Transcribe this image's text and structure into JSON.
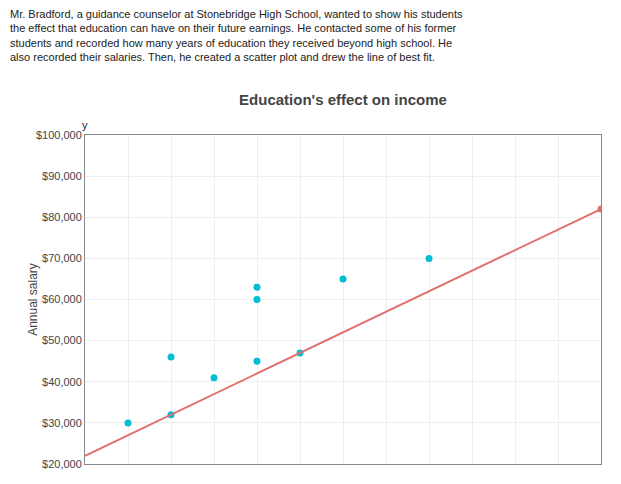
{
  "chart_data": {
    "type": "scatter",
    "title": "Education's effect on income",
    "subtitle": "Mr. Bradford, a guidance counselor at Stonebridge High School, wanted to show his students\nthe effect that education can have on their future earnings. He contacted some of his former\nstudents and recorded how many years of education they received beyond high school. He\nalso recorded their salaries. Then, he created a scatter plot and drew the line of best fit.",
    "ylabel": "Annual salary",
    "annotations": [
      "y"
    ],
    "series": [
      {
        "type": "scatter",
        "color": "#00BCD4",
        "x": [
          1,
          2,
          2,
          3,
          4,
          4,
          4,
          5,
          6,
          8
        ],
        "values": [
          30000,
          32000,
          46000,
          41000,
          60000,
          45000,
          63000,
          47000,
          65000,
          70000
        ]
      },
      {
        "type": "line",
        "color": "#E07070",
        "x": [
          0,
          12
        ],
        "values": [
          22000,
          82000
        ]
      },
      {
        "type": "scatter",
        "color": "#E07070",
        "x": [
          12
        ],
        "values": [
          82000
        ]
      }
    ],
    "xlim": [
      0,
      12
    ],
    "xticks": [
      0,
      1,
      2,
      3,
      4,
      5,
      6,
      7,
      8,
      9,
      10,
      11,
      12
    ],
    "ylim": [
      20000,
      100000
    ],
    "yticks": [
      {
        "value": 20000,
        "label": "$20,000"
      },
      {
        "value": 30000,
        "label": "$30,000"
      },
      {
        "value": 40000,
        "label": "$40,000"
      },
      {
        "value": 50000,
        "label": "$50,000"
      },
      {
        "value": 60000,
        "label": "$60,000"
      },
      {
        "value": 70000,
        "label": "$70,000"
      },
      {
        "value": 80000,
        "label": "$80,000"
      },
      {
        "value": 90000,
        "label": "$90,000"
      },
      {
        "value": 100000,
        "label": "$100,000"
      }
    ],
    "grid": true,
    "tick_labels": "y"
  }
}
